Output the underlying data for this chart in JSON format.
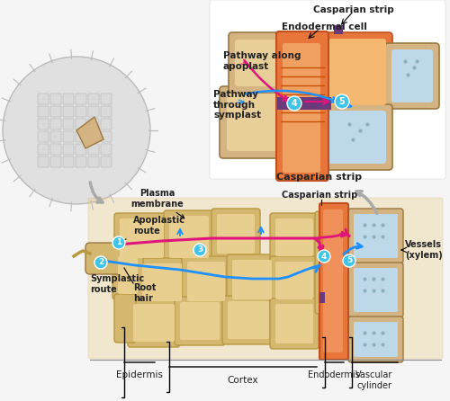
{
  "title": "",
  "bg_color": "#ffffff",
  "labels": {
    "casparian_strip_top": "Casparian strip",
    "endodermal_cell": "Endodermal cell",
    "pathway_apoplast": "Pathway along\napoplast",
    "pathway_symplast": "Pathway\nthrough\nsymplast",
    "casparian_strip_bottom": "Casparian strip",
    "plasma_membrane": "Plasma\nmembrane",
    "apoplastic_route": "Apoplastic\nroute",
    "symplastic_route": "Symplastic\nroute",
    "root_hair": "Root\nhair",
    "vessels": "Vessels\n(xylem)",
    "epidermis": "Epidermis",
    "cortex": "Cortex",
    "endodermis": "Endodermis",
    "vascular_cylinder": "Vascular\ncylinder"
  },
  "colors": {
    "cell_tan": "#D4B483",
    "cell_orange": "#E8763A",
    "cell_dark_orange": "#C85A2A",
    "casparian_purple": "#6B3A7D",
    "pathway_magenta": "#E0157A",
    "pathway_blue": "#1E90FF",
    "label_blue_circle": "#40C4E8",
    "arrow_gray": "#AAAAAA",
    "text_black": "#222222",
    "background": "#F5F5F5",
    "cell_light_blue": "#BDD8E8",
    "root_cross_section": "#C8C8C8"
  },
  "figure_width": 5.0,
  "figure_height": 4.46
}
